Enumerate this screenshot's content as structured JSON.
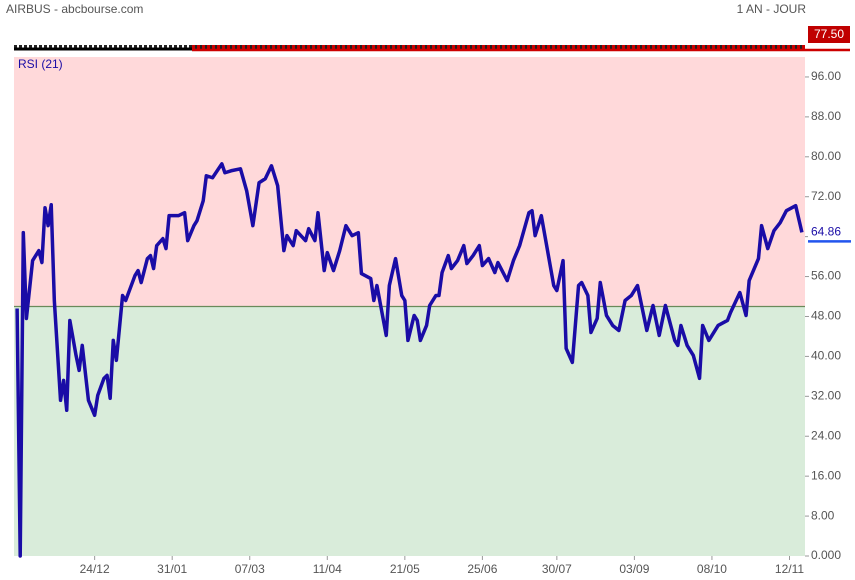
{
  "chart_data": {
    "type": "line",
    "header_left": "AIRBUS - abcbourse.com",
    "header_right": "1 AN - JOUR",
    "indicator_label": "RSI (21)",
    "price_badge": "77.50",
    "threshold": 50,
    "upper_zone_color": "#ffd9da",
    "lower_zone_color": "#d9ecda",
    "xlim": [
      0,
      255
    ],
    "ylim": [
      0,
      100
    ],
    "xticks": [
      {
        "value": 26,
        "label": "24/12"
      },
      {
        "value": 51,
        "label": "31/01"
      },
      {
        "value": 76,
        "label": "07/03"
      },
      {
        "value": 101,
        "label": "11/04"
      },
      {
        "value": 126,
        "label": "21/05"
      },
      {
        "value": 151,
        "label": "25/06"
      },
      {
        "value": 175,
        "label": "30/07"
      },
      {
        "value": 200,
        "label": "03/09"
      },
      {
        "value": 225,
        "label": "08/10"
      },
      {
        "value": 250,
        "label": "12/11"
      }
    ],
    "yticks": [
      {
        "value": 0,
        "label": "0.000"
      },
      {
        "value": 8,
        "label": "8.00"
      },
      {
        "value": 16,
        "label": "16.00"
      },
      {
        "value": 24,
        "label": "24.00"
      },
      {
        "value": 32,
        "label": "32.00"
      },
      {
        "value": 40,
        "label": "40.00"
      },
      {
        "value": 48,
        "label": "48.00"
      },
      {
        "value": 56,
        "label": "56.00"
      },
      {
        "value": 64,
        "label": "64.00"
      },
      {
        "value": 72,
        "label": "72.00"
      },
      {
        "value": 80,
        "label": "80.00"
      },
      {
        "value": 88,
        "label": "88.00"
      },
      {
        "value": 96,
        "label": "96.00"
      }
    ],
    "series": [
      {
        "name": "RSI (21)",
        "color": "#1a0ca6",
        "x": [
          1,
          2,
          3,
          4,
          6,
          8,
          9,
          10,
          11,
          12,
          13,
          15,
          16,
          17,
          18,
          20,
          21,
          22,
          24,
          26,
          27,
          29,
          30,
          31,
          32,
          33,
          35,
          36,
          39,
          40,
          41,
          43,
          44,
          45,
          46,
          48,
          49,
          50,
          53,
          55,
          56,
          58,
          59,
          61,
          62,
          64,
          67,
          68,
          70,
          73,
          75,
          77,
          79,
          81,
          83,
          85,
          87,
          88,
          90,
          91,
          94,
          95,
          97,
          98,
          100,
          101,
          103,
          105,
          107,
          109,
          111,
          112,
          115,
          116,
          117,
          120,
          121,
          123,
          125,
          126,
          127,
          129,
          130,
          131,
          133,
          134,
          136,
          137,
          138,
          140,
          141,
          143,
          145,
          146,
          148,
          150,
          151,
          153,
          155,
          156,
          159,
          161,
          163,
          166,
          167,
          168,
          170,
          172,
          174,
          175,
          177,
          178,
          180,
          182,
          183,
          185,
          186,
          188,
          189,
          191,
          193,
          195,
          197,
          199,
          201,
          204,
          206,
          208,
          210,
          213,
          214,
          215,
          217,
          219,
          221,
          222,
          224,
          225,
          227,
          230,
          231,
          234,
          236,
          237,
          240,
          241,
          243,
          245,
          247,
          249,
          252,
          254
        ],
        "values": [
          49.6,
          0,
          64.8,
          47.6,
          59.2,
          61.2,
          58.8,
          69.8,
          66.2,
          70.4,
          51.2,
          31.2,
          35.2,
          29.2,
          47.2,
          40.2,
          37.2,
          42.2,
          31.2,
          28.2,
          32.2,
          35.6,
          36.2,
          31.6,
          43.2,
          39.2,
          52.2,
          51.2,
          56.2,
          57.2,
          54.8,
          59.6,
          60.2,
          57.6,
          62.2,
          63.6,
          61.6,
          68.2,
          68.2,
          68.8,
          63.2,
          66.2,
          67.2,
          71.2,
          76.2,
          75.8,
          78.6,
          76.8,
          77.2,
          77.6,
          73.2,
          66.2,
          74.8,
          75.6,
          78.2,
          74.2,
          61.2,
          64.2,
          62.2,
          65.2,
          63.2,
          65.6,
          63.2,
          68.8,
          57.2,
          60.8,
          57.2,
          61.2,
          66.2,
          64.2,
          64.8,
          56.6,
          55.6,
          51.2,
          54.2,
          44.2,
          54.2,
          59.6,
          52.2,
          51.2,
          43.2,
          48.2,
          47.2,
          43.2,
          46.2,
          50.2,
          52.2,
          52.2,
          56.8,
          60.2,
          57.6,
          59.2,
          62.2,
          58.6,
          60.2,
          62.2,
          58.2,
          59.6,
          56.8,
          58.8,
          55.2,
          59.2,
          62.2,
          68.8,
          69.2,
          64.2,
          68.2,
          61.2,
          54.2,
          53.2,
          59.2,
          41.6,
          38.8,
          54.2,
          54.8,
          52.2,
          44.8,
          47.6,
          54.8,
          48.2,
          46.2,
          45.2,
          51.2,
          52.2,
          54.2,
          45.2,
          50.2,
          44.2,
          50.2,
          43.2,
          42.2,
          46.2,
          42.2,
          40.2,
          35.6,
          46.2,
          43.2,
          44.2,
          46.2,
          47.2,
          48.8,
          52.8,
          48.2,
          55.2,
          59.6,
          66.2,
          61.6,
          65.2,
          66.8,
          69.2,
          70.2,
          64.86
        ]
      }
    ]
  }
}
